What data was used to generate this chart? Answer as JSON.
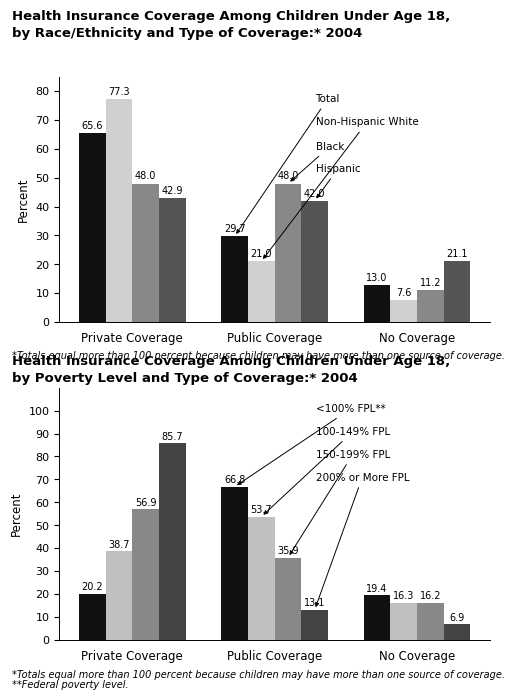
{
  "chart1": {
    "title_line1": "Health Insurance Coverage Among Children Under Age 18,",
    "title_line2": "by Race/Ethnicity and Type of Coverage:* 2004",
    "categories": [
      "Private Coverage",
      "Public Coverage",
      "No Coverage"
    ],
    "legend_labels": [
      "Total",
      "Non-Hispanic White",
      "Black",
      "Hispanic"
    ],
    "colors": [
      "#111111",
      "#d0d0d0",
      "#888888",
      "#555555"
    ],
    "values": [
      [
        65.6,
        29.7,
        13.0
      ],
      [
        77.3,
        21.0,
        7.6
      ],
      [
        48.0,
        48.0,
        11.2
      ],
      [
        42.9,
        42.0,
        21.1
      ]
    ],
    "ylim": [
      0,
      85
    ],
    "yticks": [
      0,
      10,
      20,
      30,
      40,
      50,
      60,
      70,
      80
    ],
    "ylabel": "Percent",
    "footnote": "*Totals equal more than 100 percent because children may have more than one source of coverage."
  },
  "chart2": {
    "title_line1": "Health Insurance Coverage Among Children Under Age 18,",
    "title_line2": "by Poverty Level and Type of Coverage:* 2004",
    "categories": [
      "Private Coverage",
      "Public Coverage",
      "No Coverage"
    ],
    "legend_labels": [
      "<100% FPL**",
      "100-149% FPL",
      "150-199% FPL",
      "200% or More FPL"
    ],
    "colors": [
      "#111111",
      "#c0c0c0",
      "#888888",
      "#444444"
    ],
    "values": [
      [
        20.2,
        66.8,
        19.4
      ],
      [
        38.7,
        53.7,
        16.3
      ],
      [
        56.9,
        35.9,
        16.2
      ],
      [
        85.7,
        13.1,
        6.9
      ]
    ],
    "ylim": [
      0,
      110
    ],
    "yticks": [
      0,
      10,
      20,
      30,
      40,
      50,
      60,
      70,
      80,
      90,
      100
    ],
    "ylabel": "Percent",
    "footnote1": "*Totals equal more than 100 percent because children may have more than one source of coverage.",
    "footnote2": "**Federal poverty level."
  }
}
